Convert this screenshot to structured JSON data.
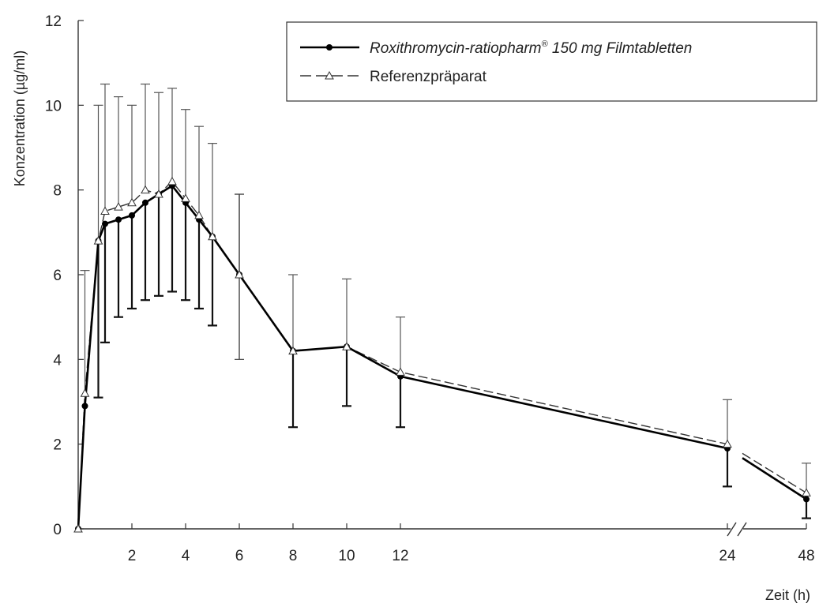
{
  "chart_data": {
    "type": "line",
    "ylabel": "Konzentration (µg/ml)",
    "xlabel": "Zeit (h)",
    "ylim": [
      0,
      12
    ],
    "yticks": [
      "0",
      "2",
      "4",
      "6",
      "8",
      "10",
      "12"
    ],
    "xticks": [
      "2",
      "4",
      "6",
      "8",
      "10",
      "12",
      "24",
      "48"
    ],
    "axis_break": "between 12 and 24 on the x axis, drawn as // before 24",
    "legend": {
      "placement": "top-right",
      "entries": [
        {
          "label": "Roxithromycin-ratiopharm",
          "superscript": "®",
          "suffix": " 150 mg Filmtabletten"
        },
        {
          "label": "Referenzpräparat"
        }
      ]
    },
    "x": [
      0,
      0.25,
      0.75,
      1,
      1.5,
      2,
      2.5,
      3,
      3.5,
      4,
      4.5,
      5,
      6,
      8,
      10,
      12,
      24,
      48
    ],
    "series": [
      {
        "name": "Roxithromycin-ratiopharm® 150 mg Filmtabletten",
        "style": "solid",
        "marker": "filled-circle",
        "color": "#000000",
        "values": [
          0,
          2.9,
          6.8,
          7.2,
          7.3,
          7.4,
          7.7,
          7.9,
          8.1,
          7.7,
          7.3,
          6.9,
          6.0,
          4.2,
          4.3,
          3.6,
          1.9,
          0.7
        ],
        "error_lower": [
          0,
          2.9,
          3.1,
          4.4,
          5.0,
          5.2,
          5.4,
          5.5,
          5.6,
          5.4,
          5.2,
          4.8,
          6.0,
          2.4,
          2.9,
          2.4,
          1.0,
          0.25
        ]
      },
      {
        "name": "Referenzpräparat",
        "style": "dashed",
        "marker": "open-triangle",
        "color": "#333333",
        "values": [
          0,
          3.2,
          6.8,
          7.5,
          7.6,
          7.7,
          8.0,
          7.9,
          8.2,
          7.8,
          7.4,
          6.9,
          6.0,
          4.2,
          4.3,
          3.7,
          2.0,
          0.85
        ],
        "error_upper": [
          0,
          6.1,
          10.0,
          10.5,
          10.2,
          10.0,
          10.5,
          10.3,
          10.4,
          9.9,
          9.5,
          9.1,
          7.9,
          6.0,
          5.9,
          5.0,
          3.05,
          1.55
        ]
      }
    ],
    "extra_errorbar_segments": [
      {
        "x": 6,
        "from": 4.0,
        "to": 7.9
      }
    ]
  }
}
